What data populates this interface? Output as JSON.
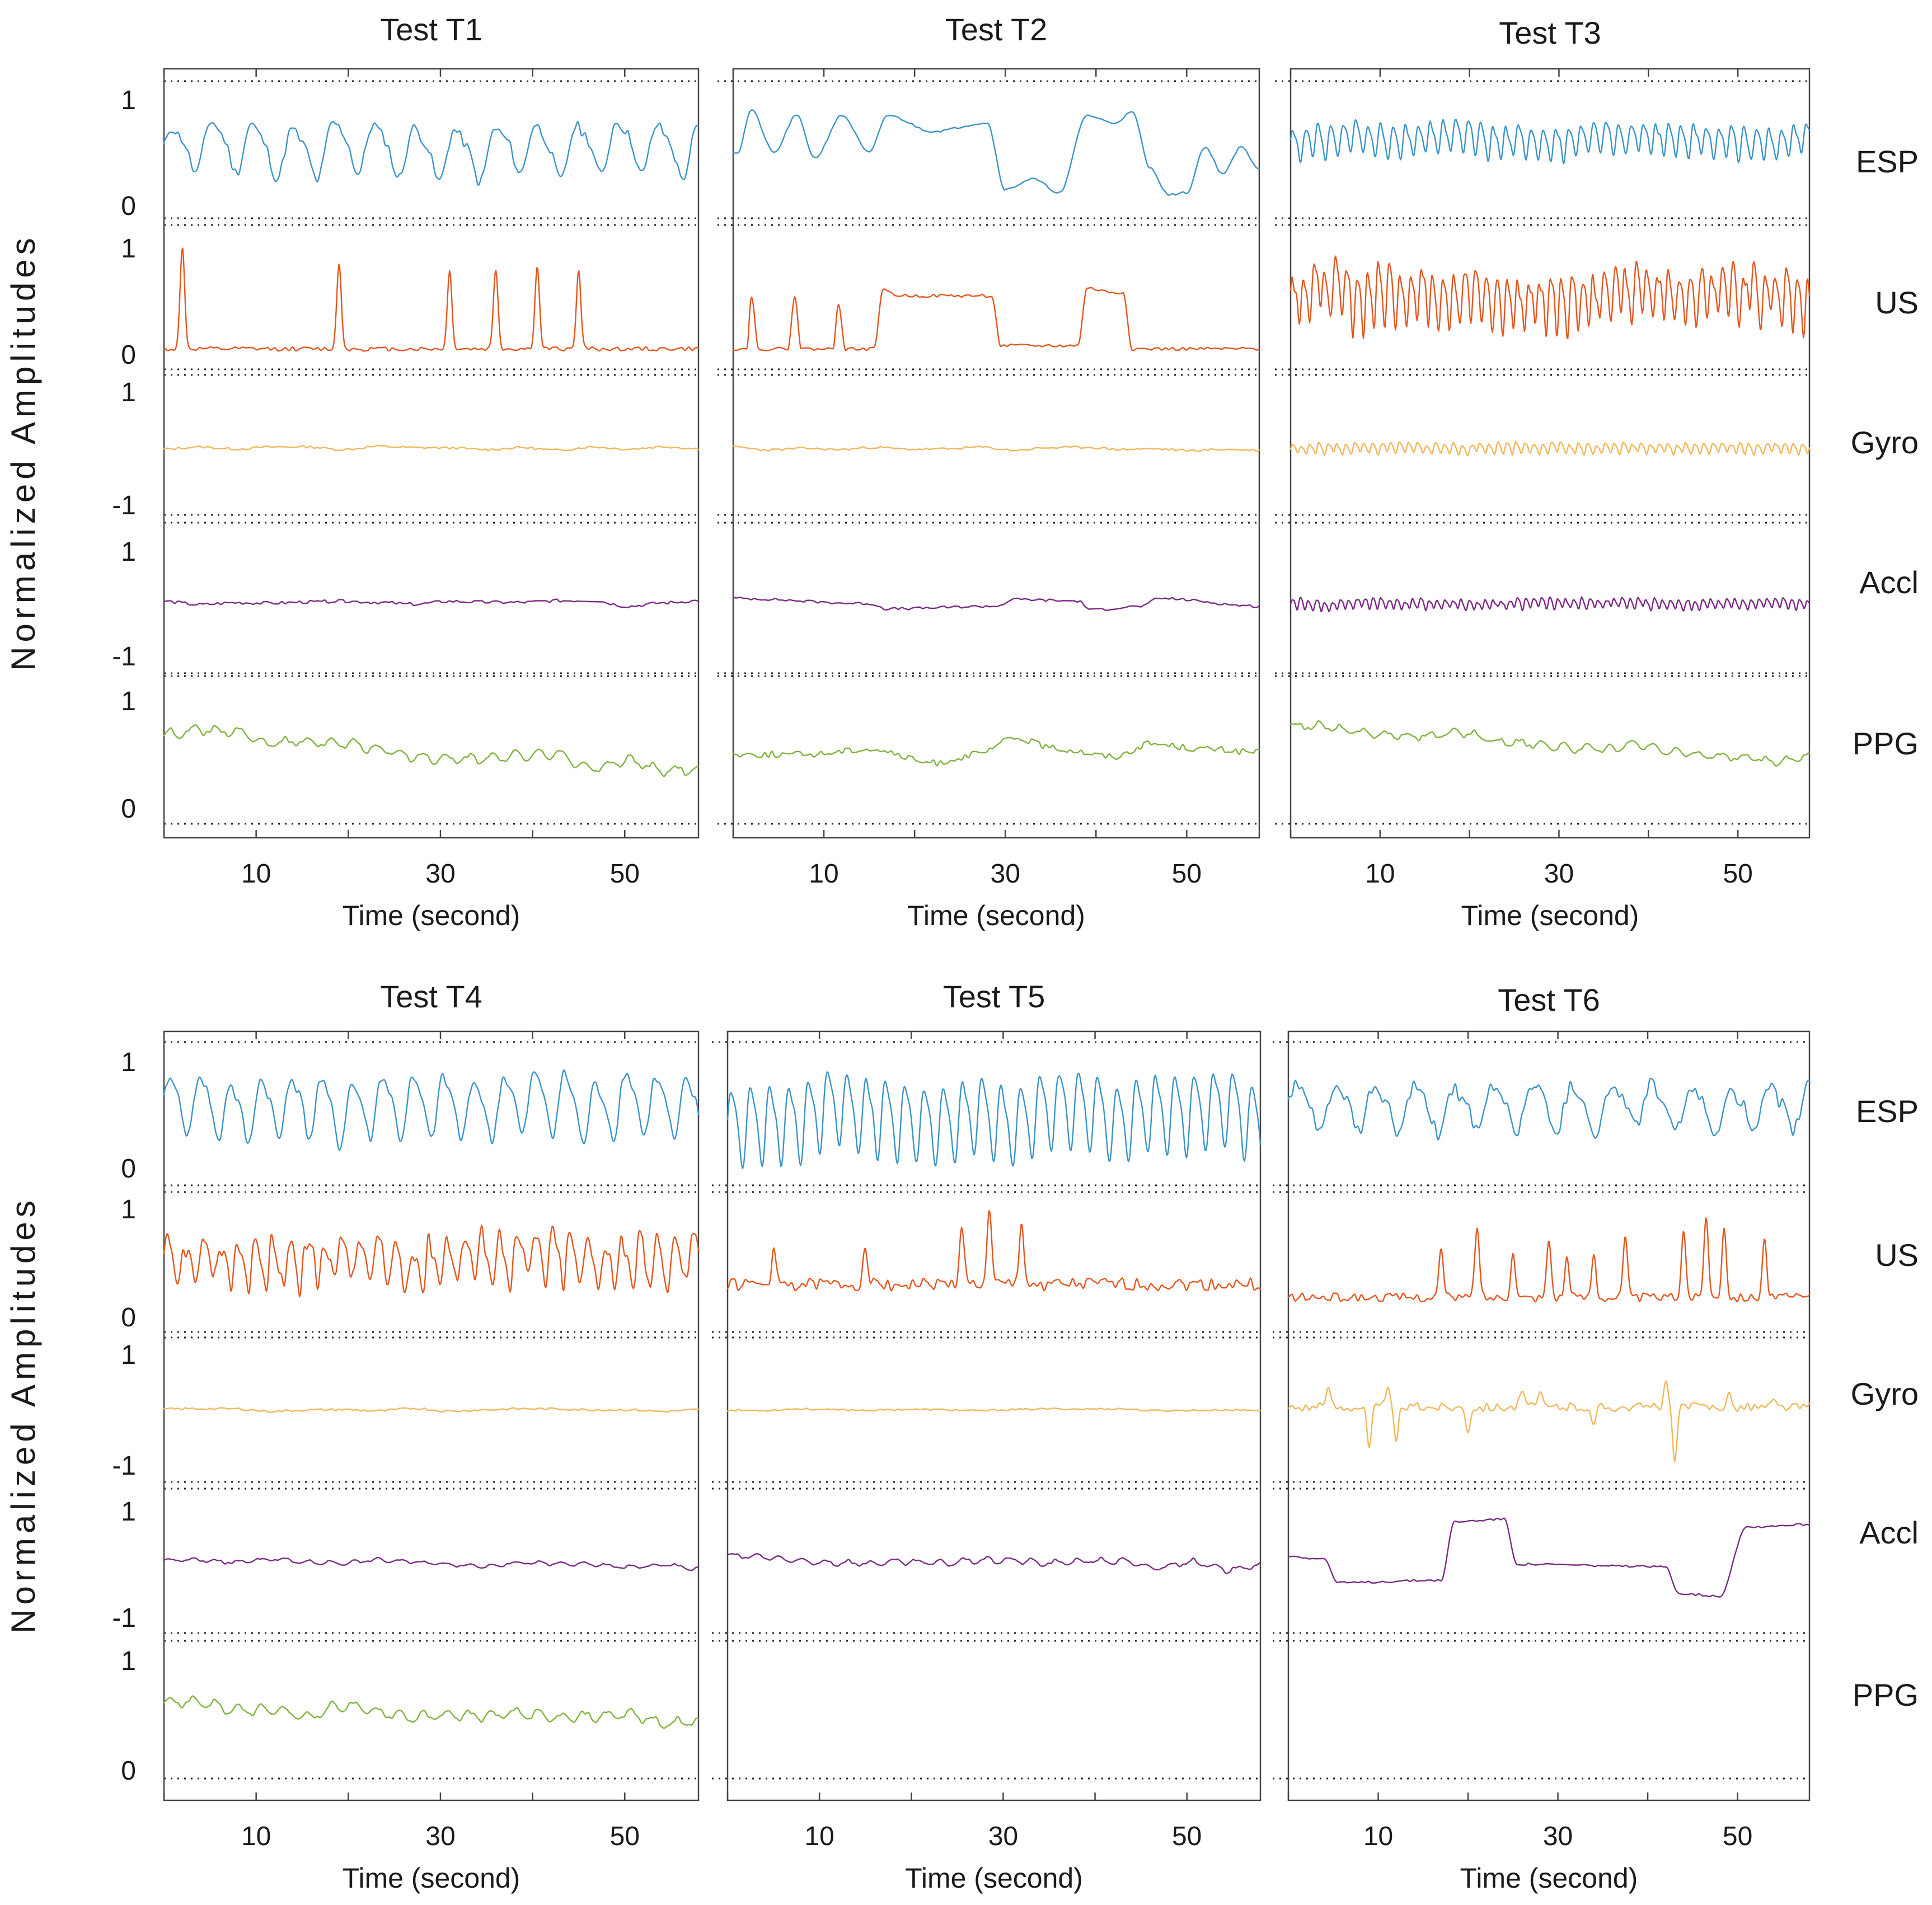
{
  "figure": {
    "y_axis_label": "Normalized  Amplitudes",
    "x_axis_label": "Time (second)",
    "x_tick_labels": [
      "10",
      "30",
      "50"
    ],
    "signal_labels": [
      "ESP",
      "US",
      "Gyro",
      "Accl",
      "PPG"
    ]
  },
  "colors": {
    "ESP": "#3b94c8",
    "US": "#e4571f",
    "Gyro": "#f2b65a",
    "Accl": "#7b2a86",
    "PPG": "#7fb23d"
  },
  "chart_data": [
    {
      "type": "line",
      "title": "Test T1",
      "xlabel": "Time (second)",
      "ylabel": "Normalized  Amplitudes",
      "xlim": [
        0,
        58
      ],
      "xticks": [
        10,
        30,
        50
      ],
      "series": [
        {
          "name": "ESP",
          "ylim": [
            0,
            1
          ],
          "ytick_labels": [
            "1",
            "0"
          ],
          "pattern": "periodic",
          "period": 4.4,
          "base": 0.55,
          "amp": 0.28,
          "noise": 0.05,
          "seed": 11
        },
        {
          "name": "US",
          "ylim": [
            0,
            1
          ],
          "ytick_labels": [
            "1",
            "0"
          ],
          "pattern": "spikes",
          "base": 0.05,
          "spikes": [
            [
              2,
              1.0
            ],
            [
              19,
              0.85
            ],
            [
              31,
              0.78
            ],
            [
              36,
              0.8
            ],
            [
              40.5,
              0.82
            ],
            [
              45,
              0.78
            ]
          ],
          "noise": 0.02,
          "seed": 12
        },
        {
          "name": "Gyro",
          "ylim": [
            -1,
            1
          ],
          "ytick_labels": [
            "1",
            "-1"
          ],
          "pattern": "noise",
          "base": 0.0,
          "amp": 0.06,
          "noise": 0.02,
          "seed": 13
        },
        {
          "name": "Accl",
          "ylim": [
            -1,
            1
          ],
          "ytick_labels": [
            "1",
            "-1"
          ],
          "pattern": "noise",
          "base": 0.0,
          "amp": 0.1,
          "noise": 0.03,
          "seed": 14
        },
        {
          "name": "PPG",
          "ylim": [
            0,
            1
          ],
          "ytick_labels": [
            "1",
            "0"
          ],
          "pattern": "drift",
          "start": 0.7,
          "end": 0.35,
          "amp": 0.07,
          "noise": 0.02,
          "seed": 15
        }
      ]
    },
    {
      "type": "line",
      "title": "Test T2",
      "xlabel": "Time (second)",
      "ylabel": "Normalized  Amplitudes",
      "xlim": [
        0,
        58
      ],
      "xticks": [
        10,
        30,
        50
      ],
      "series": [
        {
          "name": "ESP",
          "ylim": [
            0,
            1
          ],
          "ytick_labels": [
            "1",
            "0"
          ],
          "pattern": "keys",
          "points": [
            [
              0.5,
              0.5
            ],
            [
              2,
              0.9
            ],
            [
              4.5,
              0.5
            ],
            [
              7,
              0.85
            ],
            [
              9,
              0.45
            ],
            [
              12,
              0.85
            ],
            [
              15,
              0.5
            ],
            [
              17,
              0.85
            ],
            [
              22,
              0.7
            ],
            [
              28,
              0.78
            ],
            [
              30,
              0.15
            ],
            [
              33,
              0.25
            ],
            [
              36,
              0.12
            ],
            [
              39,
              0.85
            ],
            [
              42,
              0.78
            ],
            [
              44,
              0.88
            ],
            [
              46,
              0.35
            ],
            [
              48,
              0.1
            ],
            [
              50,
              0.12
            ],
            [
              52,
              0.55
            ],
            [
              54,
              0.3
            ],
            [
              56,
              0.55
            ],
            [
              58,
              0.35
            ]
          ],
          "noise": 0.01,
          "seed": 21
        },
        {
          "name": "US",
          "ylim": [
            0,
            1
          ],
          "ytick_labels": [
            "1",
            "0"
          ],
          "pattern": "keys",
          "points": [
            [
              0,
              0.05
            ],
            [
              1.5,
              0.05
            ],
            [
              2,
              0.55
            ],
            [
              2.8,
              0.05
            ],
            [
              6,
              0.05
            ],
            [
              6.8,
              0.55
            ],
            [
              7.5,
              0.05
            ],
            [
              11,
              0.05
            ],
            [
              11.6,
              0.48
            ],
            [
              12.4,
              0.05
            ],
            [
              15.5,
              0.05
            ],
            [
              16.5,
              0.6
            ],
            [
              18.5,
              0.55
            ],
            [
              28.5,
              0.55
            ],
            [
              29.5,
              0.08
            ],
            [
              38,
              0.08
            ],
            [
              39,
              0.62
            ],
            [
              42,
              0.58
            ],
            [
              43,
              0.58
            ],
            [
              44,
              0.05
            ],
            [
              58,
              0.05
            ]
          ],
          "noise": 0.015,
          "seed": 22
        },
        {
          "name": "Gyro",
          "ylim": [
            -1,
            1
          ],
          "ytick_labels": [
            "1",
            "-1"
          ],
          "pattern": "noise",
          "base": 0.0,
          "amp": 0.07,
          "noise": 0.02,
          "seed": 23
        },
        {
          "name": "Accl",
          "ylim": [
            -1,
            1
          ],
          "ytick_labels": [
            "1",
            "-1"
          ],
          "pattern": "keys",
          "points": [
            [
              0,
              0.1
            ],
            [
              15,
              0.0
            ],
            [
              17,
              -0.1
            ],
            [
              29,
              -0.05
            ],
            [
              31,
              0.08
            ],
            [
              38,
              0.05
            ],
            [
              39.5,
              -0.12
            ],
            [
              45,
              -0.05
            ],
            [
              47,
              0.1
            ],
            [
              58,
              -0.05
            ]
          ],
          "noise": 0.025,
          "seed": 24
        },
        {
          "name": "PPG",
          "ylim": [
            0,
            1
          ],
          "ytick_labels": [
            "1",
            "0"
          ],
          "pattern": "keys",
          "points": [
            [
              0,
              0.5
            ],
            [
              8,
              0.5
            ],
            [
              15,
              0.55
            ],
            [
              22,
              0.42
            ],
            [
              27,
              0.5
            ],
            [
              31,
              0.65
            ],
            [
              36,
              0.55
            ],
            [
              42,
              0.48
            ],
            [
              46,
              0.6
            ],
            [
              52,
              0.55
            ],
            [
              58,
              0.52
            ]
          ],
          "noise": 0.03,
          "seed": 25
        }
      ]
    },
    {
      "type": "line",
      "title": "Test T3",
      "xlabel": "Time (second)",
      "ylabel": "Normalized  Amplitudes",
      "xlim": [
        0,
        58
      ],
      "xticks": [
        10,
        30,
        50
      ],
      "series": [
        {
          "name": "ESP",
          "ylim": [
            0,
            1
          ],
          "ytick_labels": [
            "1",
            "0"
          ],
          "pattern": "periodic",
          "period": 1.4,
          "base": 0.62,
          "amp": 0.17,
          "noise": 0.04,
          "seed": 31
        },
        {
          "name": "US",
          "ylim": [
            0,
            1
          ],
          "ytick_labels": [
            "1",
            "0"
          ],
          "pattern": "periodic",
          "period": 1.2,
          "base": 0.55,
          "amp": 0.28,
          "noise": 0.12,
          "seed": 32
        },
        {
          "name": "Gyro",
          "ylim": [
            -1,
            1
          ],
          "ytick_labels": [
            "1",
            "-1"
          ],
          "pattern": "periodic",
          "period": 1.0,
          "base": 0.0,
          "amp": 0.1,
          "noise": 0.04,
          "seed": 33
        },
        {
          "name": "Accl",
          "ylim": [
            -1,
            1
          ],
          "ytick_labels": [
            "1",
            "-1"
          ],
          "pattern": "periodic",
          "period": 0.9,
          "base": 0.0,
          "amp": 0.1,
          "noise": 0.05,
          "seed": 34
        },
        {
          "name": "PPG",
          "ylim": [
            0,
            1
          ],
          "ytick_labels": [
            "1",
            "0"
          ],
          "pattern": "drift",
          "start": 0.78,
          "end": 0.45,
          "amp": 0.05,
          "noise": 0.02,
          "seed": 35
        }
      ]
    },
    {
      "type": "line",
      "title": "Test T4",
      "xlabel": "Time (second)",
      "ylabel": "Normalized  Amplitudes",
      "xlim": [
        0,
        58
      ],
      "xticks": [
        10,
        30,
        50
      ],
      "series": [
        {
          "name": "ESP",
          "ylim": [
            0,
            1
          ],
          "ytick_labels": [
            "1",
            "0"
          ],
          "pattern": "periodic",
          "period": 3.3,
          "base": 0.58,
          "amp": 0.33,
          "noise": 0.05,
          "seed": 41
        },
        {
          "name": "US",
          "ylim": [
            0,
            1
          ],
          "ytick_labels": [
            "1",
            "0"
          ],
          "pattern": "periodic",
          "period": 1.9,
          "base": 0.52,
          "amp": 0.24,
          "noise": 0.12,
          "seed": 42
        },
        {
          "name": "Gyro",
          "ylim": [
            -1,
            1
          ],
          "ytick_labels": [
            "1",
            "-1"
          ],
          "pattern": "noise",
          "base": 0.0,
          "amp": 0.05,
          "noise": 0.02,
          "seed": 43
        },
        {
          "name": "Accl",
          "ylim": [
            -1,
            1
          ],
          "ytick_labels": [
            "1",
            "-1"
          ],
          "pattern": "drift",
          "start": 0.1,
          "end": -0.05,
          "amp": 0.05,
          "noise": 0.02,
          "seed": 44
        },
        {
          "name": "PPG",
          "ylim": [
            0,
            1
          ],
          "ytick_labels": [
            "1",
            "0"
          ],
          "pattern": "drift",
          "start": 0.58,
          "end": 0.42,
          "amp": 0.07,
          "noise": 0.02,
          "seed": 45
        }
      ]
    },
    {
      "type": "line",
      "title": "Test T5",
      "xlabel": "Time (second)",
      "ylabel": "Normalized  Amplitudes",
      "xlim": [
        0,
        58
      ],
      "xticks": [
        10,
        30,
        50
      ],
      "series": [
        {
          "name": "ESP",
          "ylim": [
            0,
            1
          ],
          "ytick_labels": [
            "1",
            "0"
          ],
          "pattern": "periodic",
          "period": 2.1,
          "base": 0.5,
          "amp": 0.42,
          "noise": 0.03,
          "seed": 51
        },
        {
          "name": "US",
          "ylim": [
            0,
            1
          ],
          "ytick_labels": [
            "1",
            "0"
          ],
          "pattern": "spikes",
          "base": 0.3,
          "spikes": [
            [
              5,
              0.58
            ],
            [
              15,
              0.68
            ],
            [
              25.5,
              0.88
            ],
            [
              28.5,
              0.95
            ],
            [
              32,
              0.9
            ]
          ],
          "noise": 0.06,
          "seed": 52
        },
        {
          "name": "Gyro",
          "ylim": [
            -1,
            1
          ],
          "ytick_labels": [
            "1",
            "-1"
          ],
          "pattern": "noise",
          "base": 0.0,
          "amp": 0.03,
          "noise": 0.015,
          "seed": 53
        },
        {
          "name": "Accl",
          "ylim": [
            -1,
            1
          ],
          "ytick_labels": [
            "1",
            "-1"
          ],
          "pattern": "drift",
          "start": 0.12,
          "end": -0.05,
          "amp": 0.08,
          "noise": 0.03,
          "seed": 54
        }
      ]
    },
    {
      "type": "line",
      "title": "Test T6",
      "xlabel": "Time (second)",
      "ylabel": "Normalized  Amplitudes",
      "xlim": [
        0,
        58
      ],
      "xticks": [
        10,
        30,
        50
      ],
      "series": [
        {
          "name": "ESP",
          "ylim": [
            0,
            1
          ],
          "ytick_labels": [
            "1",
            "0"
          ],
          "pattern": "periodic",
          "period": 4.4,
          "base": 0.58,
          "amp": 0.25,
          "noise": 0.07,
          "seed": 61
        },
        {
          "name": "US",
          "ylim": [
            0,
            1
          ],
          "ytick_labels": [
            "1",
            "0"
          ],
          "pattern": "spikes",
          "base": 0.18,
          "spikes": [
            [
              17,
              0.62
            ],
            [
              21,
              0.85
            ],
            [
              25,
              0.62
            ],
            [
              29,
              0.72
            ],
            [
              31,
              0.55
            ],
            [
              34,
              0.58
            ],
            [
              37.5,
              0.72
            ],
            [
              44,
              0.8
            ],
            [
              46.5,
              0.95
            ],
            [
              48.5,
              0.85
            ],
            [
              53,
              0.72
            ]
          ],
          "noise": 0.04,
          "seed": 62
        },
        {
          "name": "Gyro",
          "ylim": [
            -1,
            1
          ],
          "ytick_labels": [
            "1",
            "-1"
          ],
          "pattern": "spikes",
          "base": 0.05,
          "spikes": [
            [
              4.5,
              0.4
            ],
            [
              9,
              -0.7
            ],
            [
              11,
              0.4
            ],
            [
              12,
              -0.6
            ],
            [
              20,
              -0.35
            ],
            [
              26,
              0.35
            ],
            [
              28,
              0.3
            ],
            [
              34,
              -0.3
            ],
            [
              42,
              0.55
            ],
            [
              43,
              -0.95
            ],
            [
              49,
              0.3
            ],
            [
              54,
              0.15
            ]
          ],
          "noise": 0.08,
          "seed": 63
        },
        {
          "name": "Accl",
          "ylim": [
            -1,
            1
          ],
          "ytick_labels": [
            "1",
            "-1"
          ],
          "pattern": "keys",
          "points": [
            [
              0,
              0.15
            ],
            [
              4,
              0.1
            ],
            [
              5.5,
              -0.35
            ],
            [
              17,
              -0.3
            ],
            [
              18.5,
              0.8
            ],
            [
              24,
              0.85
            ],
            [
              25.5,
              0.0
            ],
            [
              42,
              -0.05
            ],
            [
              43.5,
              -0.55
            ],
            [
              48,
              -0.6
            ],
            [
              51,
              0.7
            ],
            [
              58,
              0.75
            ]
          ],
          "noise": 0.02,
          "seed": 64
        }
      ]
    }
  ]
}
